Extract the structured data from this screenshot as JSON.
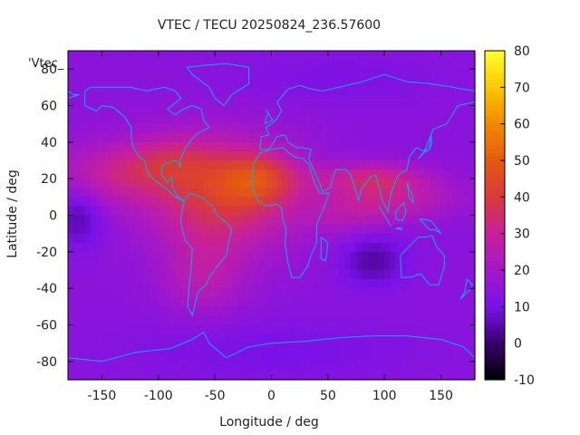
{
  "chart_data": {
    "type": "heatmap",
    "title": "VTEC / TECU 20250824_236.57600",
    "xlabel": "Longitude / deg",
    "ylabel": "Latitude / deg",
    "legend_key": "'Vtec_",
    "xlim": [
      -180,
      180
    ],
    "ylim": [
      -90,
      90
    ],
    "x_ticks": [
      -150,
      -100,
      -50,
      0,
      50,
      100,
      150
    ],
    "y_ticks": [
      -80,
      -60,
      -40,
      -20,
      0,
      20,
      40,
      60,
      80
    ],
    "colorbar": {
      "range": [
        -10,
        80
      ],
      "ticks": [
        -10,
        0,
        10,
        20,
        30,
        40,
        50,
        60,
        70,
        80
      ],
      "palette": [
        "#000000",
        "#3a0070",
        "#7a12e8",
        "#a418c8",
        "#c8209a",
        "#d83a3a",
        "#e55a10",
        "#f08a00",
        "#f8c800",
        "#ffff30"
      ]
    },
    "grid_step_deg": 5,
    "background_vtec": 14,
    "features": [
      {
        "lon": -45,
        "lat": 10,
        "sx": 45,
        "sy": 22,
        "amp": 25
      },
      {
        "lon": -10,
        "lat": 20,
        "sx": 25,
        "sy": 10,
        "amp": 18
      },
      {
        "lon": -140,
        "lat": 22,
        "sx": 40,
        "sy": 12,
        "amp": 14
      },
      {
        "lon": -90,
        "lat": 30,
        "sx": 30,
        "sy": 10,
        "amp": 10
      },
      {
        "lon": -60,
        "lat": -35,
        "sx": 25,
        "sy": 14,
        "amp": 10
      },
      {
        "lon": 90,
        "lat": 20,
        "sx": 35,
        "sy": 6,
        "amp": 18
      },
      {
        "lon": 110,
        "lat": 8,
        "sx": 40,
        "sy": 7,
        "amp": 12
      },
      {
        "lon": 70,
        "lat": 0,
        "sx": 30,
        "sy": 8,
        "amp": 8
      },
      {
        "lon": -170,
        "lat": 0,
        "sx": 15,
        "sy": 12,
        "amp": -10
      },
      {
        "lon": 90,
        "lat": -25,
        "sx": 20,
        "sy": 10,
        "amp": -10
      },
      {
        "lon": 0,
        "lat": -75,
        "sx": 90,
        "sy": 12,
        "amp": -4
      },
      {
        "lon": 60,
        "lat": 75,
        "sx": 70,
        "sy": 10,
        "amp": -3
      }
    ],
    "coastlines": [
      [
        [
          -165,
          68
        ],
        [
          -160,
          70
        ],
        [
          -140,
          70
        ],
        [
          -125,
          70
        ],
        [
          -110,
          68
        ],
        [
          -95,
          70
        ],
        [
          -85,
          68
        ],
        [
          -80,
          64
        ],
        [
          -92,
          58
        ],
        [
          -85,
          55
        ],
        [
          -78,
          58
        ],
        [
          -70,
          60
        ],
        [
          -62,
          58
        ],
        [
          -60,
          52
        ],
        [
          -55,
          48
        ],
        [
          -65,
          45
        ],
        [
          -70,
          42
        ],
        [
          -75,
          38
        ],
        [
          -78,
          34
        ],
        [
          -81,
          30
        ],
        [
          -80,
          26
        ],
        [
          -82,
          28
        ],
        [
          -85,
          30
        ],
        [
          -90,
          29
        ],
        [
          -97,
          27
        ],
        [
          -97,
          22
        ],
        [
          -92,
          18
        ],
        [
          -88,
          21
        ],
        [
          -87,
          15
        ],
        [
          -83,
          10
        ],
        [
          -79,
          9
        ],
        [
          -77,
          7
        ],
        [
          -79,
          8
        ],
        [
          -85,
          10
        ],
        [
          -92,
          14
        ],
        [
          -105,
          20
        ],
        [
          -110,
          24
        ],
        [
          -112,
          30
        ],
        [
          -117,
          32
        ],
        [
          -122,
          37
        ],
        [
          -124,
          42
        ],
        [
          -124,
          48
        ],
        [
          -130,
          54
        ],
        [
          -140,
          59
        ],
        [
          -150,
          60
        ],
        [
          -155,
          57
        ],
        [
          -165,
          60
        ],
        [
          -165,
          68
        ]
      ],
      [
        [
          -77,
          8
        ],
        [
          -72,
          12
        ],
        [
          -62,
          10
        ],
        [
          -52,
          5
        ],
        [
          -48,
          0
        ],
        [
          -38,
          -5
        ],
        [
          -35,
          -8
        ],
        [
          -38,
          -15
        ],
        [
          -40,
          -22
        ],
        [
          -48,
          -28
        ],
        [
          -55,
          -34
        ],
        [
          -58,
          -38
        ],
        [
          -65,
          -42
        ],
        [
          -68,
          -50
        ],
        [
          -70,
          -55
        ],
        [
          -74,
          -50
        ],
        [
          -73,
          -40
        ],
        [
          -71,
          -30
        ],
        [
          -70,
          -18
        ],
        [
          -76,
          -14
        ],
        [
          -80,
          -5
        ],
        [
          -80,
          0
        ],
        [
          -77,
          8
        ]
      ],
      [
        [
          -17,
          21
        ],
        [
          -17,
          15
        ],
        [
          -12,
          8
        ],
        [
          -5,
          5
        ],
        [
          5,
          6
        ],
        [
          9,
          4
        ],
        [
          10,
          -2
        ],
        [
          13,
          -8
        ],
        [
          12,
          -16
        ],
        [
          15,
          -27
        ],
        [
          18,
          -34
        ],
        [
          25,
          -34
        ],
        [
          32,
          -28
        ],
        [
          35,
          -22
        ],
        [
          40,
          -15
        ],
        [
          40,
          -5
        ],
        [
          45,
          2
        ],
        [
          51,
          12
        ],
        [
          43,
          12
        ],
        [
          38,
          18
        ],
        [
          33,
          28
        ],
        [
          28,
          31
        ],
        [
          20,
          32
        ],
        [
          10,
          37
        ],
        [
          0,
          36
        ],
        [
          -10,
          34
        ],
        [
          -16,
          28
        ],
        [
          -17,
          21
        ]
      ],
      [
        [
          -10,
          36
        ],
        [
          -9,
          43
        ],
        [
          -2,
          44
        ],
        [
          -5,
          48
        ],
        [
          2,
          51
        ],
        [
          5,
          53
        ],
        [
          9,
          57
        ],
        [
          5,
          62
        ],
        [
          15,
          69
        ],
        [
          25,
          71
        ],
        [
          35,
          69
        ],
        [
          45,
          68
        ],
        [
          60,
          70
        ],
        [
          80,
          73
        ],
        [
          100,
          77
        ],
        [
          120,
          73
        ],
        [
          140,
          72
        ],
        [
          160,
          70
        ],
        [
          180,
          68
        ]
      ],
      [
        [
          180,
          62
        ],
        [
          165,
          60
        ],
        [
          160,
          55
        ],
        [
          155,
          50
        ],
        [
          143,
          47
        ],
        [
          140,
          42
        ],
        [
          135,
          35
        ],
        [
          128,
          37
        ],
        [
          122,
          32
        ],
        [
          120,
          25
        ],
        [
          112,
          22
        ],
        [
          108,
          16
        ],
        [
          105,
          10
        ],
        [
          103,
          2
        ],
        [
          98,
          8
        ],
        [
          95,
          16
        ],
        [
          92,
          22
        ],
        [
          88,
          21
        ],
        [
          80,
          15
        ],
        [
          77,
          8
        ],
        [
          73,
          17
        ],
        [
          70,
          22
        ],
        [
          66,
          25
        ],
        [
          57,
          25
        ],
        [
          55,
          22
        ],
        [
          52,
          15
        ],
        [
          45,
          13
        ],
        [
          43,
          17
        ],
        [
          35,
          28
        ],
        [
          33,
          31
        ],
        [
          35,
          36
        ],
        [
          27,
          37
        ],
        [
          22,
          37
        ],
        [
          15,
          40
        ],
        [
          12,
          44
        ],
        [
          5,
          43
        ],
        [
          -2,
          36
        ],
        [
          -10,
          36
        ]
      ],
      [
        [
          114,
          -22
        ],
        [
          115,
          -34
        ],
        [
          123,
          -34
        ],
        [
          132,
          -32
        ],
        [
          140,
          -38
        ],
        [
          148,
          -38
        ],
        [
          153,
          -28
        ],
        [
          153,
          -22
        ],
        [
          146,
          -17
        ],
        [
          142,
          -11
        ],
        [
          137,
          -12
        ],
        [
          130,
          -12
        ],
        [
          122,
          -17
        ],
        [
          114,
          -22
        ]
      ],
      [
        [
          -75,
          81
        ],
        [
          -60,
          82
        ],
        [
          -40,
          83
        ],
        [
          -20,
          81
        ],
        [
          -20,
          72
        ],
        [
          -35,
          66
        ],
        [
          -42,
          60
        ],
        [
          -50,
          64
        ],
        [
          -55,
          70
        ],
        [
          -70,
          77
        ],
        [
          -75,
          81
        ]
      ],
      [
        [
          -6,
          50
        ],
        [
          -3,
          56
        ],
        [
          -5,
          58
        ],
        [
          1,
          52
        ],
        [
          -6,
          50
        ]
      ],
      [
        [
          44,
          -12
        ],
        [
          48,
          -14
        ],
        [
          50,
          -16
        ],
        [
          48,
          -25
        ],
        [
          44,
          -24
        ],
        [
          44,
          -12
        ]
      ],
      [
        [
          130,
          31
        ],
        [
          134,
          34
        ],
        [
          140,
          36
        ],
        [
          142,
          40
        ],
        [
          141,
          44
        ],
        [
          140,
          38
        ],
        [
          133,
          33
        ],
        [
          130,
          31
        ]
      ],
      [
        [
          95,
          5
        ],
        [
          105,
          -5
        ],
        [
          106,
          -6
        ],
        [
          100,
          0
        ],
        [
          95,
          5
        ]
      ],
      [
        [
          110,
          -7
        ],
        [
          115,
          -8
        ],
        [
          115,
          -7
        ],
        [
          110,
          -7
        ]
      ],
      [
        [
          131,
          -2
        ],
        [
          141,
          -3
        ],
        [
          150,
          -10
        ],
        [
          145,
          -8
        ],
        [
          140,
          -8
        ],
        [
          131,
          -2
        ]
      ],
      [
        [
          117,
          7
        ],
        [
          119,
          2
        ],
        [
          116,
          -3
        ],
        [
          110,
          -2
        ],
        [
          110,
          2
        ],
        [
          117,
          7
        ]
      ],
      [
        [
          120,
          18
        ],
        [
          122,
          14
        ],
        [
          124,
          12
        ],
        [
          126,
          7
        ],
        [
          122,
          9
        ],
        [
          120,
          18
        ]
      ],
      [
        [
          173,
          -35
        ],
        [
          178,
          -38
        ],
        [
          175,
          -41
        ],
        [
          167,
          -46
        ],
        [
          171,
          -42
        ],
        [
          173,
          -35
        ]
      ],
      [
        [
          -180,
          -78
        ],
        [
          -150,
          -80
        ],
        [
          -120,
          -75
        ],
        [
          -90,
          -73
        ],
        [
          -70,
          -68
        ],
        [
          -60,
          -64
        ],
        [
          -55,
          -70
        ],
        [
          -40,
          -78
        ],
        [
          -20,
          -72
        ],
        [
          0,
          -70
        ],
        [
          30,
          -69
        ],
        [
          60,
          -67
        ],
        [
          90,
          -66
        ],
        [
          120,
          -66
        ],
        [
          150,
          -68
        ],
        [
          170,
          -72
        ],
        [
          180,
          -78
        ]
      ],
      [
        [
          -180,
          68
        ],
        [
          -175,
          66
        ],
        [
          -170,
          66
        ],
        [
          -180,
          64
        ]
      ]
    ]
  }
}
